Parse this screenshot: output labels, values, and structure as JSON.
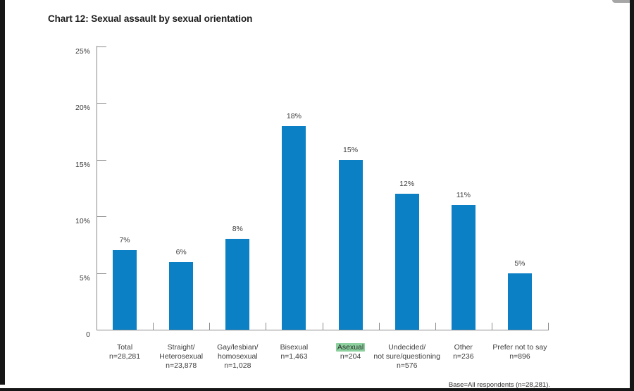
{
  "page": {
    "title": "Chart 12: Sexual assault by sexual orientation",
    "base_note": "Base=All respondents (n=28,281)."
  },
  "chart_data": {
    "type": "bar",
    "title": "Chart 12: Sexual assault by sexual orientation",
    "xlabel": "",
    "ylabel": "",
    "ylim": [
      0,
      25
    ],
    "grid": false,
    "legend": "none",
    "bar_color": "#0b80c4",
    "axis_color": "#8a8a8a",
    "text_color": "#3c3c3c",
    "highlight_color": "#8bd09d",
    "y_ticks": [
      {
        "value": 25,
        "label": "25%"
      },
      {
        "value": 20,
        "label": "20%"
      },
      {
        "value": 15,
        "label": "15%"
      },
      {
        "value": 10,
        "label": "10%"
      },
      {
        "value": 5,
        "label": "5%"
      },
      {
        "value": 0,
        "label": "0"
      }
    ],
    "categories": [
      {
        "lines": [
          "Total",
          "n=28,281"
        ],
        "highlight_line": null
      },
      {
        "lines": [
          "Straight/",
          "Heterosexual",
          "n=23,878"
        ],
        "highlight_line": null
      },
      {
        "lines": [
          "Gay/lesbian/",
          "homosexual",
          "n=1,028"
        ],
        "highlight_line": null
      },
      {
        "lines": [
          "Bisexual",
          "n=1,463"
        ],
        "highlight_line": null
      },
      {
        "lines": [
          "Asexual",
          "n=204"
        ],
        "highlight_line": 0
      },
      {
        "lines": [
          "Undecided/",
          "not sure/questioning",
          "n=576"
        ],
        "highlight_line": null
      },
      {
        "lines": [
          "Other",
          "n=236"
        ],
        "highlight_line": null
      },
      {
        "lines": [
          "Prefer not to say",
          "n=896"
        ],
        "highlight_line": null
      }
    ],
    "values": [
      7,
      6,
      8,
      18,
      15,
      12,
      11,
      5
    ],
    "value_labels": [
      "7%",
      "6%",
      "8%",
      "18%",
      "15%",
      "12%",
      "11%",
      "5%"
    ]
  }
}
